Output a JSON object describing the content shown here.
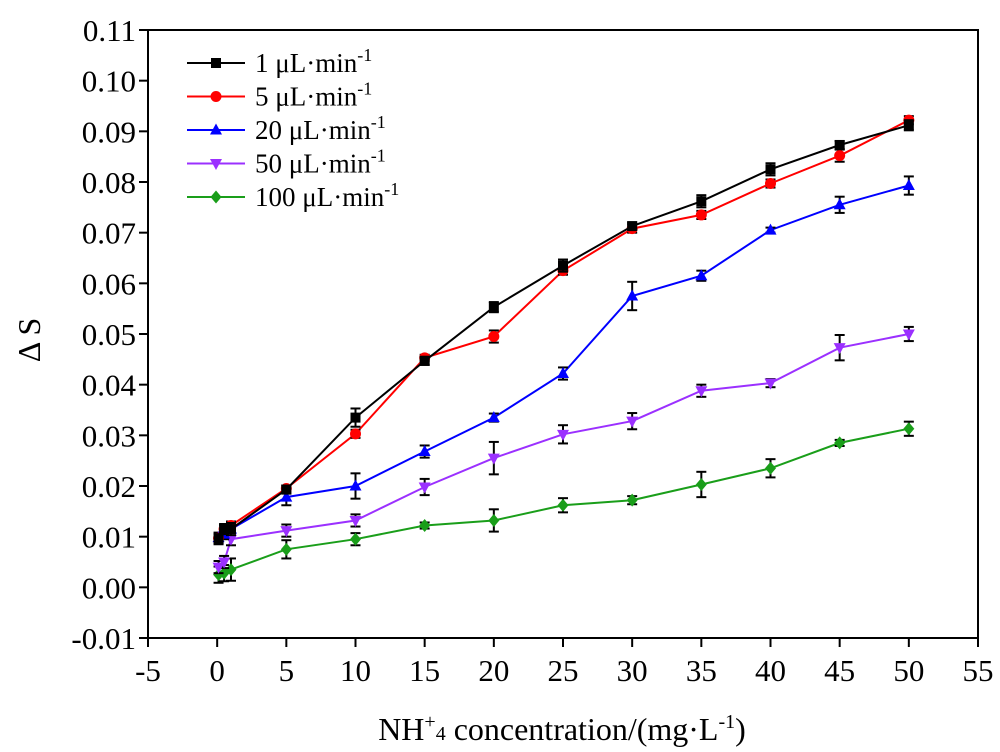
{
  "chart_data": {
    "type": "line",
    "xlabel": "NH+4 concentration/(mg·L-1)",
    "xlabel_parts": {
      "main": "NH",
      "sup1": "+",
      "sub": "4",
      "rest": " concentration/(mg·L",
      "sup2": "-1",
      "end": ")"
    },
    "ylabel": "Δ S",
    "xlim": [
      -5,
      55
    ],
    "ylim": [
      -0.01,
      0.11
    ],
    "xticks": [
      -5,
      0,
      5,
      10,
      15,
      20,
      25,
      30,
      35,
      40,
      45,
      50,
      55
    ],
    "xtick_labels": [
      "-5",
      "0",
      "5",
      "10",
      "15",
      "20",
      "25",
      "30",
      "35",
      "40",
      "45",
      "50",
      "55"
    ],
    "yticks": [
      -0.01,
      0.0,
      0.01,
      0.02,
      0.03,
      0.04,
      0.05,
      0.06,
      0.07,
      0.08,
      0.09,
      0.1,
      0.11
    ],
    "ytick_labels": [
      "-0.01",
      "0.00",
      "0.01",
      "0.02",
      "0.03",
      "0.04",
      "0.05",
      "0.06",
      "0.07",
      "0.08",
      "0.09",
      "0.10",
      "0.11"
    ],
    "grid": false,
    "legend_position": "top-left",
    "x": [
      0.1,
      0.5,
      1,
      5,
      10,
      15,
      20,
      25,
      30,
      35,
      40,
      45,
      50
    ],
    "series": [
      {
        "name": "1 μL·min-1",
        "legend": {
          "main": "1 μL·min",
          "sup": "-1"
        },
        "color": "#000000",
        "marker": "square",
        "values": [
          0.0095,
          0.0115,
          0.0115,
          0.0193,
          0.0335,
          0.0447,
          0.0553,
          0.0635,
          0.0713,
          0.0762,
          0.0825,
          0.0873,
          0.0912
        ],
        "errors": [
          0.001,
          0.001,
          0.0012,
          0.0008,
          0.0018,
          0.0008,
          0.001,
          0.0012,
          0.0007,
          0.0012,
          0.0012,
          0.0008,
          0.001
        ]
      },
      {
        "name": "5 μL·min-1",
        "legend": {
          "main": "5 μL·min",
          "sup": "-1"
        },
        "color": "#ff0000",
        "marker": "circle",
        "values": [
          0.0097,
          0.0115,
          0.0122,
          0.0195,
          0.0303,
          0.0453,
          0.0495,
          0.0625,
          0.0708,
          0.0735,
          0.0797,
          0.0852,
          0.0922
        ],
        "errors": [
          0.0008,
          0.0008,
          0.0008,
          0.0006,
          0.0008,
          0.0006,
          0.0012,
          0.0008,
          0.0008,
          0.0008,
          0.0008,
          0.0012,
          0.0008
        ]
      },
      {
        "name": "20 μL·min-1",
        "legend": {
          "main": "20 μL·min",
          "sup": "-1"
        },
        "color": "#0000ff",
        "marker": "triangle-up",
        "values": [
          0.0098,
          0.0105,
          0.0115,
          0.0178,
          0.02,
          0.0268,
          0.0335,
          0.0422,
          0.0575,
          0.0615,
          0.0705,
          0.0755,
          0.0793
        ],
        "errors": [
          0.001,
          0.001,
          0.0008,
          0.0016,
          0.0025,
          0.0012,
          0.0008,
          0.0012,
          0.0028,
          0.001,
          0.0005,
          0.0016,
          0.0018
        ]
      },
      {
        "name": "50 μL·min-1",
        "legend": {
          "main": "50 μL·min",
          "sup": "-1"
        },
        "color": "#9b30ff",
        "marker": "triangle-down",
        "values": [
          0.004,
          0.005,
          0.0095,
          0.0112,
          0.0132,
          0.0198,
          0.0255,
          0.0302,
          0.0328,
          0.0388,
          0.0403,
          0.0473,
          0.05
        ],
        "errors": [
          0.0012,
          0.0012,
          0.0012,
          0.0012,
          0.0012,
          0.0016,
          0.0032,
          0.0018,
          0.0016,
          0.0012,
          0.0008,
          0.0025,
          0.0014
        ]
      },
      {
        "name": "100 μL·min-1",
        "legend": {
          "main": "100 μL·min",
          "sup": "-1"
        },
        "color": "#1a9e1a",
        "marker": "diamond",
        "values": [
          0.0025,
          0.0028,
          0.0035,
          0.0075,
          0.0095,
          0.0122,
          0.0132,
          0.0162,
          0.0172,
          0.0203,
          0.0235,
          0.0285,
          0.0313
        ],
        "errors": [
          0.0016,
          0.0016,
          0.0022,
          0.0018,
          0.0012,
          0.0006,
          0.0022,
          0.0014,
          0.0008,
          0.0025,
          0.0018,
          0.0006,
          0.0014
        ]
      }
    ]
  }
}
